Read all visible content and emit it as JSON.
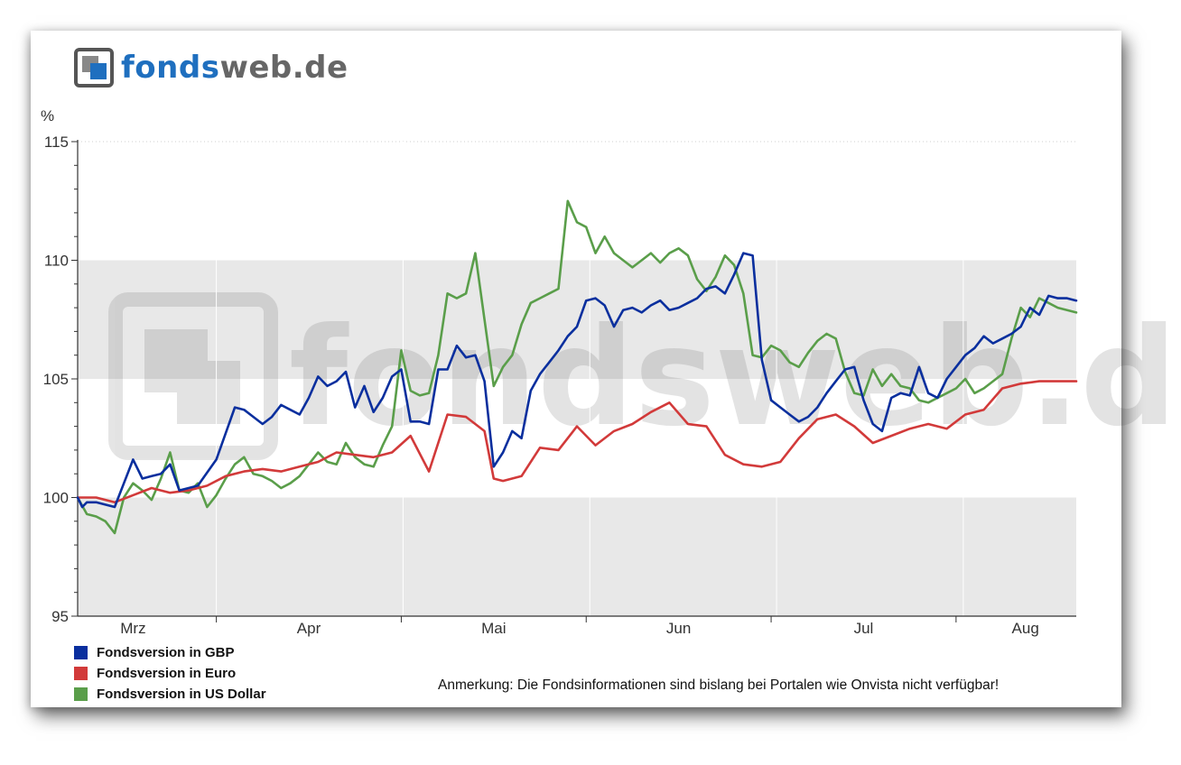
{
  "logo": {
    "text_a": "fonds",
    "text_b": "web.de"
  },
  "note": "Anmerkung: Die Fondsinformationen sind bislang bei Portalen wie Onvista nicht verfügbar!",
  "chart_data": {
    "type": "line",
    "ylabel": "%",
    "ylim": [
      95,
      115
    ],
    "yticks": [
      95,
      100,
      105,
      110,
      115
    ],
    "month_labels": [
      "Mrz",
      "Apr",
      "Mai",
      "Jun",
      "Jul",
      "Aug"
    ],
    "grid": true,
    "legend_position": "bottom-left",
    "watermark": "fondsweb.de",
    "series": [
      {
        "name": "Fondsversion in GBP",
        "color": "#0a2f9e",
        "x": [
          0,
          1,
          2,
          4,
          6,
          8,
          10,
          12,
          14,
          16,
          18,
          20,
          22,
          24,
          26,
          30,
          34,
          36,
          38,
          40,
          42,
          44,
          46,
          48,
          50,
          52,
          54,
          56,
          58,
          60,
          62,
          64,
          66,
          68,
          70,
          72,
          74,
          76,
          78,
          80,
          82,
          84,
          86,
          88,
          90,
          92,
          94,
          96,
          98,
          100,
          102,
          104,
          106,
          108,
          110,
          112,
          114,
          116,
          118,
          120,
          122,
          124,
          126,
          128,
          130,
          132,
          134,
          136,
          138,
          140,
          142,
          144,
          146,
          148,
          150,
          152,
          154,
          156,
          158,
          160,
          162,
          164,
          166,
          168,
          170,
          172,
          174,
          176,
          178,
          180,
          182,
          184,
          186,
          188,
          190,
          192,
          194,
          196,
          198,
          200,
          202,
          204,
          206,
          208,
          210,
          212,
          214,
          216
        ],
        "values": [
          100,
          99.6,
          99.8,
          99.8,
          99.7,
          99.6,
          100.6,
          101.6,
          100.8,
          100.9,
          101.0,
          101.4,
          100.3,
          100.4,
          100.5,
          101.6,
          103.8,
          103.7,
          103.4,
          103.1,
          103.4,
          103.9,
          103.7,
          103.5,
          104.2,
          105.1,
          104.7,
          104.9,
          105.3,
          103.8,
          104.7,
          103.6,
          104.2,
          105.1,
          105.4,
          103.2,
          103.2,
          103.1,
          105.4,
          105.4,
          106.4,
          105.9,
          106.0,
          104.9,
          101.3,
          101.9,
          102.8,
          102.5,
          104.5,
          105.2,
          105.7,
          106.2,
          106.8,
          107.2,
          108.3,
          108.4,
          108.1,
          107.2,
          107.9,
          108.0,
          107.8,
          108.1,
          108.3,
          107.9,
          108.0,
          108.2,
          108.4,
          108.8,
          108.9,
          108.6,
          109.4,
          110.3,
          110.2,
          105.8,
          104.1,
          103.8,
          103.5,
          103.2,
          103.4,
          103.8,
          104.4,
          104.9,
          105.4,
          105.5,
          104.1,
          103.1,
          102.8,
          104.2,
          104.4,
          104.3,
          105.5,
          104.4,
          104.2,
          105.0,
          105.5,
          106.0,
          106.3,
          106.8,
          106.5,
          106.7,
          106.9,
          107.2,
          108.0,
          107.7,
          108.5,
          108.4,
          108.4,
          108.3
        ]
      },
      {
        "name": "Fondsversion in Euro",
        "color": "#d23a3a",
        "x": [
          0,
          4,
          8,
          12,
          16,
          20,
          24,
          28,
          32,
          36,
          40,
          44,
          48,
          52,
          56,
          60,
          64,
          68,
          72,
          76,
          80,
          84,
          88,
          90,
          92,
          96,
          100,
          104,
          108,
          112,
          116,
          120,
          124,
          128,
          132,
          136,
          140,
          144,
          148,
          152,
          156,
          160,
          164,
          168,
          172,
          176,
          180,
          184,
          188,
          192,
          196,
          200,
          204,
          208,
          212,
          216
        ],
        "values": [
          100,
          100.0,
          99.8,
          100.1,
          100.4,
          100.2,
          100.3,
          100.5,
          100.9,
          101.1,
          101.2,
          101.1,
          101.3,
          101.5,
          101.9,
          101.8,
          101.7,
          101.9,
          102.6,
          101.1,
          103.5,
          103.4,
          102.8,
          100.8,
          100.7,
          100.9,
          102.1,
          102.0,
          103.0,
          102.2,
          102.8,
          103.1,
          103.6,
          104.0,
          103.1,
          103.0,
          101.8,
          101.4,
          101.3,
          101.5,
          102.5,
          103.3,
          103.5,
          103.0,
          102.3,
          102.6,
          102.9,
          103.1,
          102.9,
          103.5,
          103.7,
          104.6,
          104.8,
          104.9,
          104.9,
          104.9
        ]
      },
      {
        "name": "Fondsversion in US Dollar",
        "color": "#5a9e4a",
        "x": [
          0,
          2,
          4,
          6,
          8,
          10,
          12,
          14,
          16,
          18,
          20,
          22,
          24,
          26,
          28,
          30,
          32,
          34,
          36,
          38,
          40,
          42,
          44,
          46,
          48,
          50,
          52,
          54,
          56,
          58,
          60,
          62,
          64,
          66,
          68,
          70,
          72,
          74,
          76,
          78,
          80,
          82,
          84,
          86,
          88,
          90,
          92,
          94,
          96,
          98,
          100,
          102,
          104,
          106,
          108,
          110,
          112,
          114,
          116,
          118,
          120,
          122,
          124,
          126,
          128,
          130,
          132,
          134,
          136,
          138,
          140,
          142,
          144,
          146,
          148,
          150,
          152,
          154,
          156,
          158,
          160,
          162,
          164,
          166,
          168,
          170,
          172,
          174,
          176,
          178,
          180,
          182,
          184,
          186,
          188,
          190,
          192,
          194,
          196,
          198,
          200,
          202,
          204,
          206,
          208,
          210,
          212,
          214,
          216
        ],
        "values": [
          100,
          99.3,
          99.2,
          99.0,
          98.5,
          100.0,
          100.6,
          100.3,
          99.9,
          100.8,
          101.9,
          100.3,
          100.2,
          100.6,
          99.6,
          100.1,
          100.8,
          101.4,
          101.7,
          101.0,
          100.9,
          100.7,
          100.4,
          100.6,
          100.9,
          101.4,
          101.9,
          101.5,
          101.4,
          102.3,
          101.7,
          101.4,
          101.3,
          102.2,
          103.0,
          106.2,
          104.5,
          104.3,
          104.4,
          106.0,
          108.6,
          108.4,
          108.6,
          110.3,
          107.5,
          104.7,
          105.5,
          106.0,
          107.3,
          108.2,
          108.4,
          108.6,
          108.8,
          112.5,
          111.6,
          111.4,
          110.3,
          111.0,
          110.3,
          110.0,
          109.7,
          110.0,
          110.3,
          109.9,
          110.3,
          110.5,
          110.2,
          109.2,
          108.7,
          109.3,
          110.2,
          109.8,
          108.6,
          106.0,
          105.9,
          106.4,
          106.2,
          105.7,
          105.5,
          106.1,
          106.6,
          106.9,
          106.7,
          105.3,
          104.4,
          104.3,
          105.4,
          104.7,
          105.2,
          104.7,
          104.6,
          104.1,
          104.0,
          104.2,
          104.4,
          104.6,
          105.0,
          104.4,
          104.6,
          104.9,
          105.2,
          106.7,
          108.0,
          107.6,
          108.4,
          108.2,
          108.0,
          107.9,
          107.8
        ]
      }
    ]
  }
}
